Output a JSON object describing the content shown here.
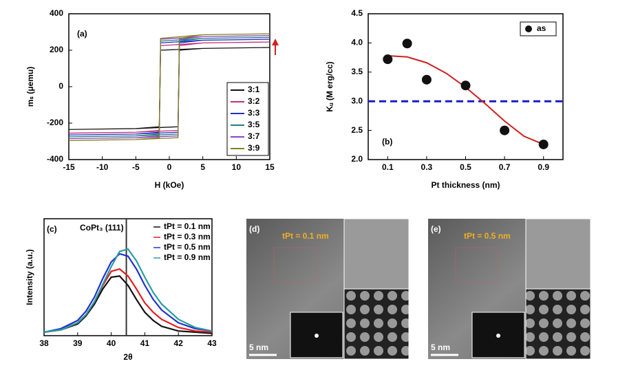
{
  "chart_data": [
    {
      "type": "line",
      "panel_label": "(a)",
      "xlabel": "H (kOe)",
      "ylabel": "mₛ (μemu)",
      "xlim": [
        -15,
        15
      ],
      "xticks": [
        -15,
        -10,
        -5,
        0,
        5,
        10,
        15
      ],
      "ylim": [
        -400,
        400
      ],
      "yticks": [
        -400,
        -200,
        0,
        200,
        400
      ],
      "series": [
        {
          "name": "3:1",
          "color": "#111111",
          "x": [
            -15,
            -5,
            1.3,
            1.5,
            5,
            15,
            15,
            5,
            -1.3,
            -1.5,
            -5,
            -15
          ],
          "values": [
            -235,
            -230,
            -220,
            200,
            210,
            215,
            215,
            210,
            200,
            -220,
            -230,
            -235
          ]
        },
        {
          "name": "3:2",
          "color": "#c0307f",
          "x": [
            -15,
            -5,
            1.3,
            1.5,
            5,
            15,
            15,
            5,
            -1.3,
            -1.5,
            -5,
            -15
          ],
          "values": [
            -255,
            -250,
            -240,
            225,
            240,
            245,
            245,
            240,
            225,
            -240,
            -250,
            -255
          ]
        },
        {
          "name": "3:3",
          "color": "#2030c0",
          "x": [
            -15,
            -5,
            1.3,
            1.5,
            5,
            15,
            15,
            5,
            -1.3,
            -1.5,
            -5,
            -15
          ],
          "values": [
            -265,
            -260,
            -250,
            240,
            255,
            260,
            260,
            255,
            240,
            -250,
            -260,
            -265
          ]
        },
        {
          "name": "3:5",
          "color": "#208080",
          "x": [
            -15,
            -5,
            1.3,
            1.5,
            5,
            15,
            15,
            5,
            -1.3,
            -1.5,
            -5,
            -15
          ],
          "values": [
            -275,
            -270,
            -260,
            250,
            265,
            270,
            270,
            265,
            250,
            -260,
            -270,
            -275
          ]
        },
        {
          "name": "3:7",
          "color": "#9040c0",
          "x": [
            -15,
            -5,
            1.3,
            1.5,
            5,
            15,
            15,
            5,
            -1.3,
            -1.5,
            -5,
            -15
          ],
          "values": [
            -285,
            -280,
            -270,
            260,
            275,
            280,
            280,
            275,
            260,
            -270,
            -280,
            -285
          ]
        },
        {
          "name": "3:9",
          "color": "#808020",
          "x": [
            -15,
            -5,
            1.3,
            1.5,
            5,
            15,
            15,
            5,
            -1.3,
            -1.5,
            -5,
            -15
          ],
          "values": [
            -295,
            -290,
            -280,
            265,
            285,
            290,
            290,
            285,
            265,
            -280,
            -290,
            -295
          ]
        }
      ]
    },
    {
      "type": "scatter",
      "panel_label": "(b)",
      "xlabel": "Pt thickness (nm)",
      "ylabel": "Kᵤ (M erg/cc)",
      "xlim": [
        0,
        1.0
      ],
      "xticks": [
        0.1,
        0.3,
        0.5,
        0.7,
        0.9
      ],
      "ylim": [
        2.0,
        4.5
      ],
      "yticks": [
        {
          "value": 2.0,
          "label": "2.0"
        },
        2.5,
        {
          "value": 3.0,
          "label": "3.0"
        },
        3.5,
        {
          "value": 4.0,
          "label": "4.0"
        },
        4.5
      ],
      "series": [
        {
          "name": "as",
          "color": "#111111",
          "x": [
            0.1,
            0.2,
            0.3,
            0.5,
            0.7,
            0.9
          ],
          "values": [
            3.72,
            3.99,
            3.37,
            3.27,
            2.5,
            2.26
          ]
        }
      ],
      "fit": {
        "color": "#d02020",
        "x": [
          0.1,
          0.2,
          0.3,
          0.4,
          0.5,
          0.6,
          0.7,
          0.8,
          0.9
        ],
        "values": [
          3.78,
          3.76,
          3.66,
          3.48,
          3.24,
          2.96,
          2.66,
          2.4,
          2.26
        ]
      },
      "reference_line": {
        "value": 3.0,
        "color": "#1a1acc"
      }
    },
    {
      "type": "line",
      "panel_label": "(c)",
      "title": "CoPt₃ (111)",
      "xlabel": "2θ",
      "ylabel": "Intensity (a.u.)",
      "xlim": [
        38,
        43
      ],
      "xticks": [
        38,
        39,
        40,
        41,
        42,
        43
      ],
      "ylim": [
        0,
        100
      ],
      "vertical_line": 40.45,
      "series": [
        {
          "name": "tPt = 0.1 nm",
          "color": "#111111",
          "x": [
            38,
            38.5,
            39,
            39.25,
            39.5,
            39.75,
            40,
            40.25,
            40.5,
            40.75,
            41,
            41.25,
            41.5,
            42,
            42.5,
            43
          ],
          "values": [
            3,
            5,
            10,
            17,
            27,
            40,
            50,
            51,
            43,
            31,
            20,
            13,
            8,
            4,
            3,
            2
          ]
        },
        {
          "name": "tPt = 0.3 nm",
          "color": "#e02020",
          "x": [
            38,
            38.5,
            39,
            39.25,
            39.5,
            39.75,
            40,
            40.25,
            40.5,
            40.75,
            41,
            41.25,
            41.5,
            42,
            42.5,
            43
          ],
          "values": [
            3,
            5,
            11,
            18,
            29,
            43,
            55,
            57,
            51,
            40,
            28,
            20,
            14,
            7,
            4,
            3
          ]
        },
        {
          "name": "tPt = 0.5 nm",
          "color": "#2030d0",
          "x": [
            38,
            38.5,
            39,
            39.25,
            39.5,
            39.75,
            40,
            40.25,
            40.5,
            40.75,
            41,
            41.25,
            41.5,
            42,
            42.5,
            43
          ],
          "values": [
            3,
            6,
            13,
            21,
            33,
            49,
            63,
            70,
            68,
            57,
            43,
            31,
            22,
            11,
            6,
            4
          ]
        },
        {
          "name": "tPt = 0.9 nm",
          "color": "#2a9d9d",
          "x": [
            38,
            38.5,
            39,
            39.25,
            39.5,
            39.75,
            40,
            40.25,
            40.5,
            40.75,
            41,
            41.25,
            41.5,
            42,
            42.5,
            43
          ],
          "values": [
            3,
            5,
            11,
            18,
            29,
            44,
            59,
            72,
            74,
            64,
            50,
            37,
            27,
            14,
            7,
            4
          ]
        }
      ]
    }
  ],
  "images": [
    {
      "label": "(d)",
      "annotation": "tPt = 0.1 nm",
      "scale_bar": "5 nm"
    },
    {
      "label": "(e)",
      "annotation": "tPt = 0.5 nm",
      "scale_bar": "5 nm"
    }
  ]
}
